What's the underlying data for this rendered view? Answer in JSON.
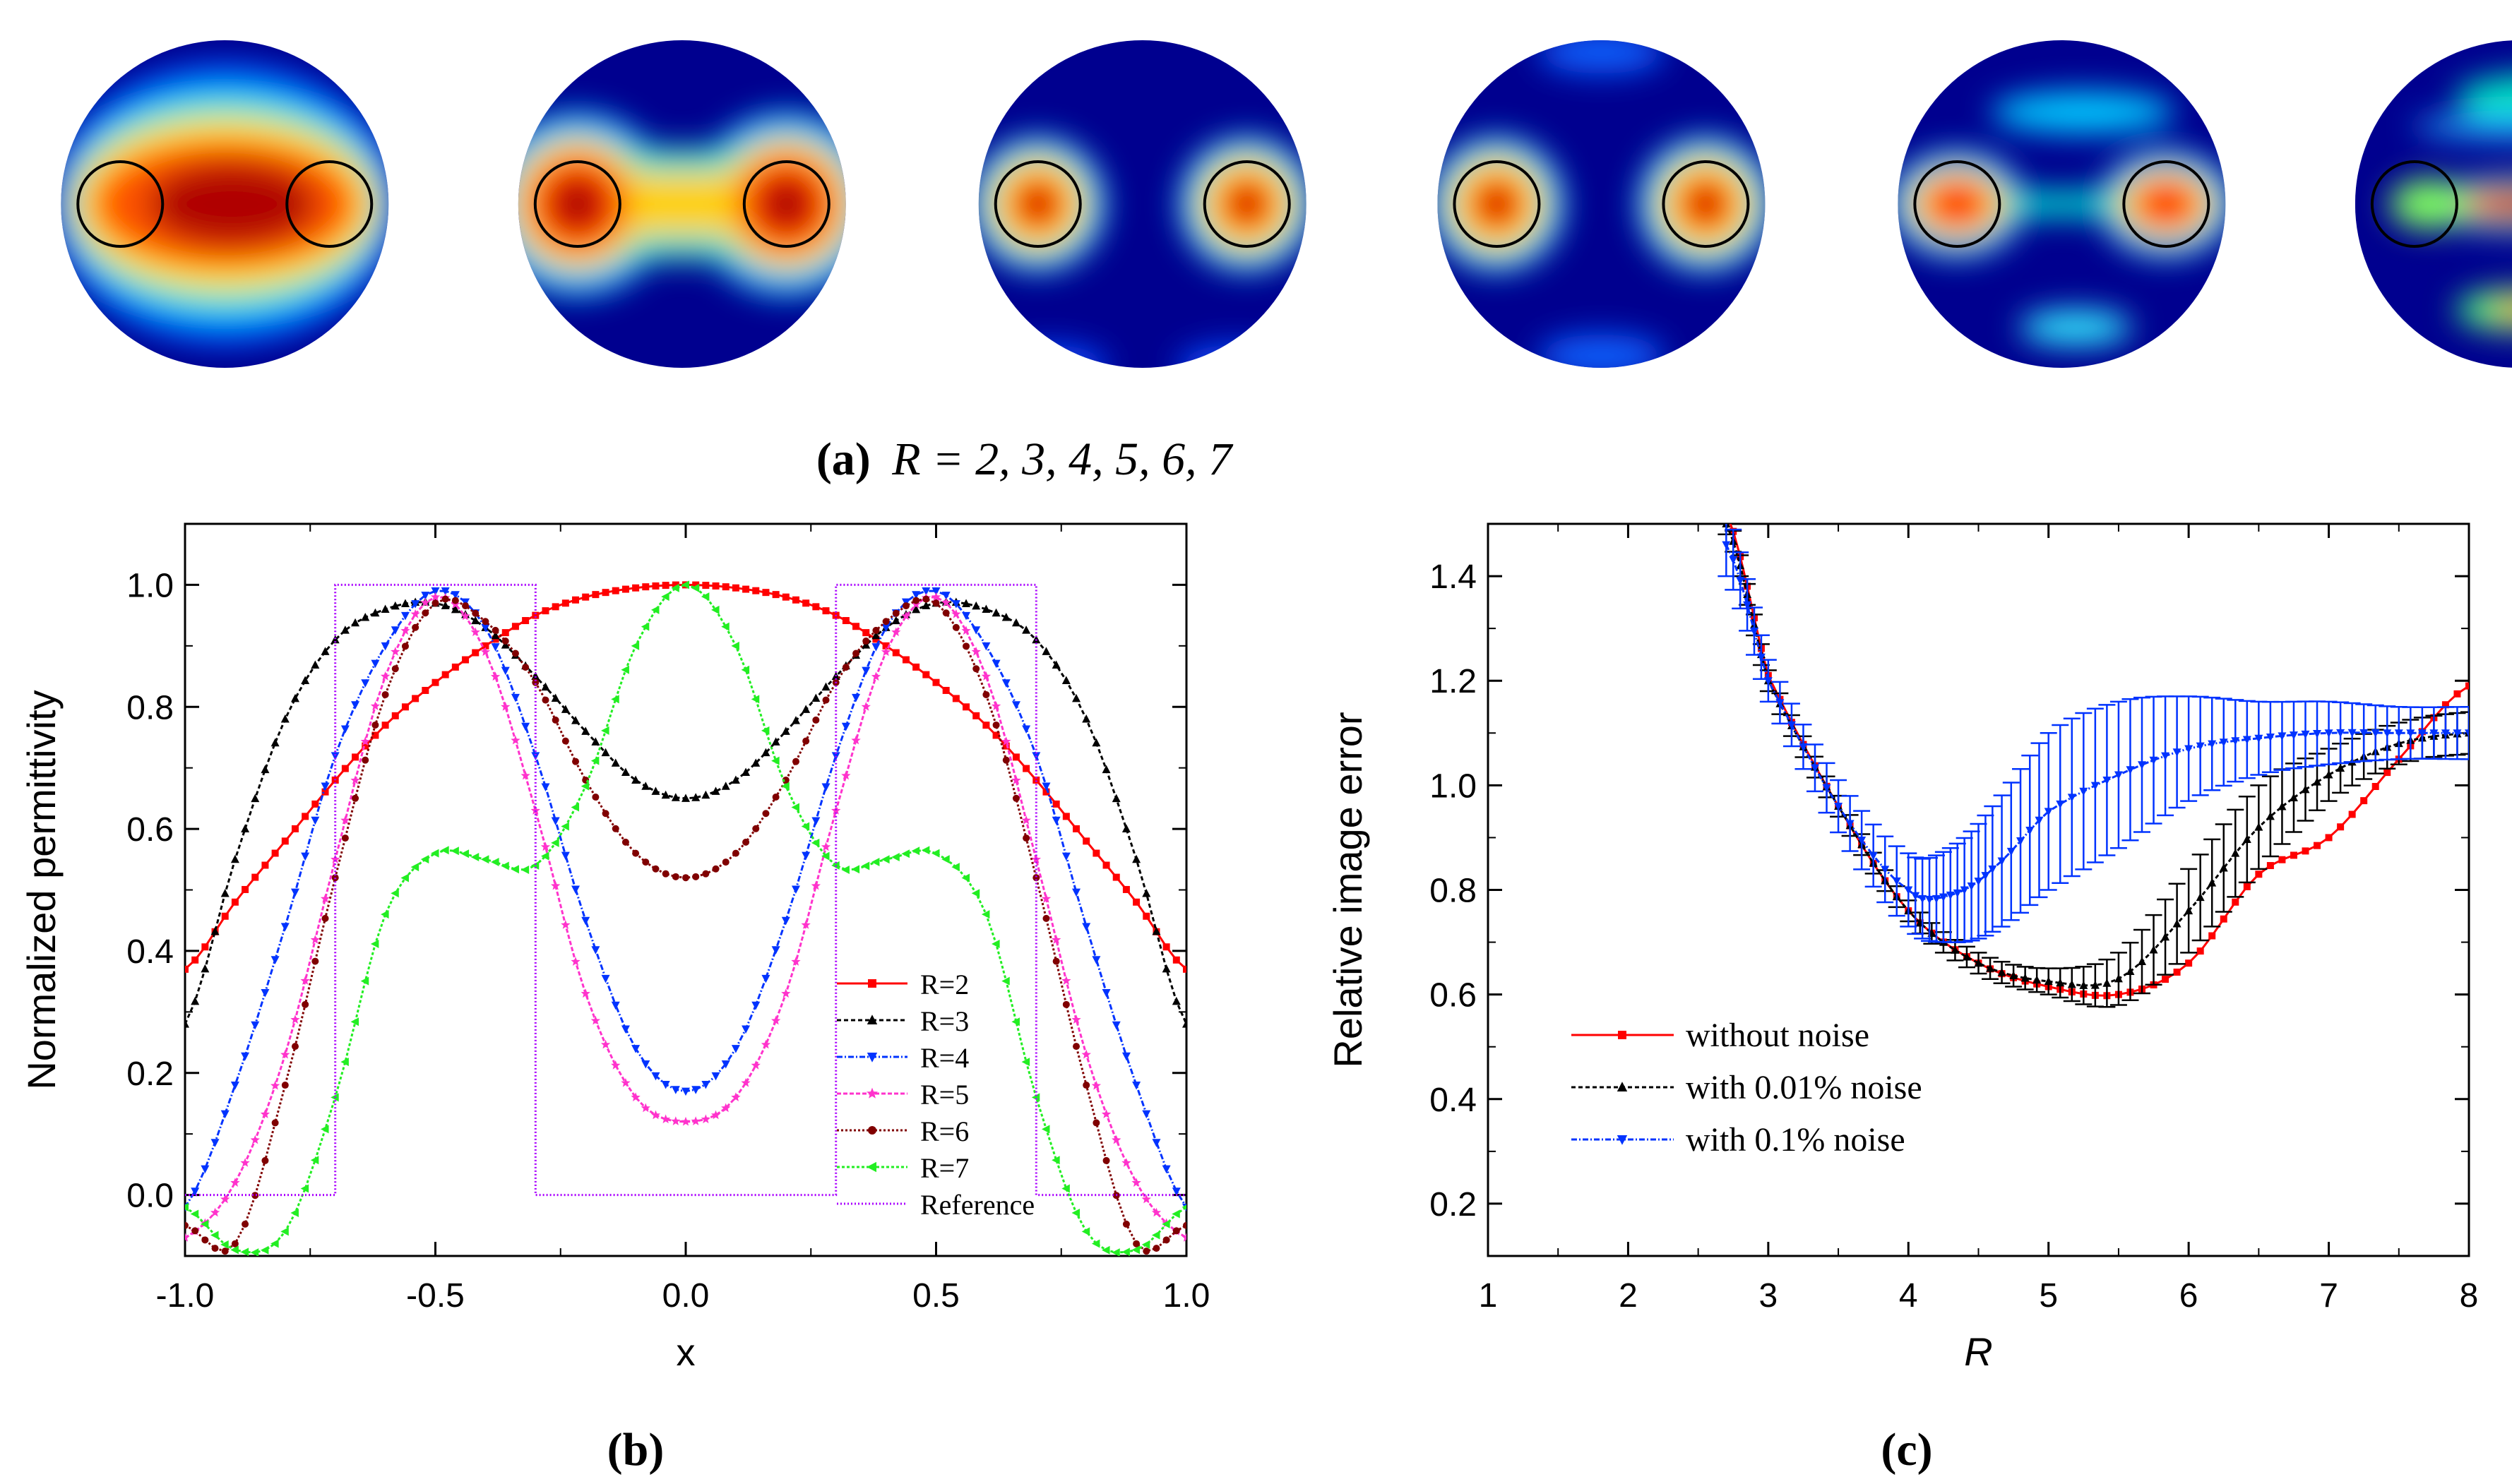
{
  "panel_a": {
    "caption_label": "(a)",
    "caption_text": "R = 2, 3, 4, 5, 6, 7",
    "images": [
      {
        "R": 2,
        "kind": "blob"
      },
      {
        "R": 3,
        "kind": "dumbbell"
      },
      {
        "R": 4,
        "kind": "twin"
      },
      {
        "R": 5,
        "kind": "twin"
      },
      {
        "R": 6,
        "kind": "bridge"
      },
      {
        "R": 7,
        "kind": "streak"
      }
    ]
  },
  "panel_b": {
    "caption_label": "(b)",
    "legend_entries": [
      "R=2",
      "R=3",
      "R=4",
      "R=5",
      "R=6",
      "R=7",
      "Reference"
    ]
  },
  "panel_c": {
    "caption_label": "(c)",
    "legend_entries": [
      "without noise",
      "with 0.01% noise",
      "with 0.1% noise"
    ]
  },
  "chart_data": [
    {
      "id": "b",
      "type": "line",
      "xlabel": "x",
      "ylabel": "Normalized permittivity",
      "xlim": [
        -1.0,
        1.0
      ],
      "ylim": [
        -0.1,
        1.1
      ],
      "xticks": [
        "-1.0",
        "-0.5",
        "0.0",
        "0.5",
        "1.0"
      ],
      "yticks": [
        "0.0",
        "0.2",
        "0.4",
        "0.6",
        "0.8",
        "1.0"
      ],
      "legend_position": "bottom-right",
      "series": [
        {
          "name": "R=2",
          "color": "#ff0000",
          "dash": "none",
          "marker": "square",
          "x": [
            -1.0,
            -0.9,
            -0.8,
            -0.7,
            -0.6,
            -0.5,
            -0.4,
            -0.3,
            -0.2,
            -0.1,
            0.0,
            0.1,
            0.2,
            0.3,
            0.4,
            0.5,
            0.6,
            0.7,
            0.8,
            0.9,
            1.0
          ],
          "y": [
            0.37,
            0.48,
            0.58,
            0.68,
            0.77,
            0.84,
            0.9,
            0.95,
            0.98,
            0.995,
            1.0,
            0.995,
            0.98,
            0.95,
            0.9,
            0.84,
            0.77,
            0.68,
            0.58,
            0.48,
            0.37
          ]
        },
        {
          "name": "R=3",
          "color": "#000000",
          "dash": "6 4",
          "marker": "triangle-up",
          "x": [
            -1.0,
            -0.9,
            -0.8,
            -0.7,
            -0.6,
            -0.5,
            -0.4,
            -0.3,
            -0.2,
            -0.1,
            0.0,
            0.1,
            0.2,
            0.3,
            0.4,
            0.5,
            0.6,
            0.7,
            0.8,
            0.9,
            1.0
          ],
          "y": [
            0.28,
            0.55,
            0.78,
            0.91,
            0.96,
            0.97,
            0.93,
            0.85,
            0.76,
            0.68,
            0.65,
            0.68,
            0.76,
            0.85,
            0.93,
            0.97,
            0.96,
            0.91,
            0.78,
            0.55,
            0.28
          ]
        },
        {
          "name": "R=4",
          "color": "#0033ff",
          "dash": "8 3 2 3",
          "marker": "triangle-down",
          "x": [
            -1.0,
            -0.9,
            -0.8,
            -0.7,
            -0.6,
            -0.5,
            -0.4,
            -0.3,
            -0.2,
            -0.1,
            0.0,
            0.1,
            0.2,
            0.3,
            0.4,
            0.5,
            0.6,
            0.7,
            0.8,
            0.9,
            1.0
          ],
          "y": [
            -0.02,
            0.18,
            0.44,
            0.72,
            0.9,
            0.99,
            0.93,
            0.72,
            0.45,
            0.24,
            0.17,
            0.24,
            0.45,
            0.72,
            0.93,
            0.99,
            0.9,
            0.72,
            0.44,
            0.18,
            -0.02
          ]
        },
        {
          "name": "R=5",
          "color": "#ff33cc",
          "dash": "6 3",
          "marker": "star",
          "x": [
            -1.0,
            -0.9,
            -0.8,
            -0.7,
            -0.6,
            -0.5,
            -0.4,
            -0.3,
            -0.2,
            -0.1,
            0.0,
            0.1,
            0.2,
            0.3,
            0.4,
            0.5,
            0.6,
            0.7,
            0.8,
            0.9,
            1.0
          ],
          "y": [
            -0.07,
            0.02,
            0.23,
            0.55,
            0.85,
            0.98,
            0.89,
            0.63,
            0.33,
            0.16,
            0.12,
            0.16,
            0.33,
            0.63,
            0.89,
            0.98,
            0.85,
            0.55,
            0.23,
            0.02,
            -0.07
          ]
        },
        {
          "name": "R=6",
          "color": "#800000",
          "dash": "3 3",
          "marker": "circle",
          "x": [
            -1.0,
            -0.9,
            -0.8,
            -0.7,
            -0.6,
            -0.5,
            -0.4,
            -0.3,
            -0.2,
            -0.1,
            0.0,
            0.1,
            0.2,
            0.3,
            0.4,
            0.5,
            0.6,
            0.7,
            0.8,
            0.9,
            1.0
          ],
          "y": [
            -0.05,
            -0.08,
            0.18,
            0.52,
            0.82,
            0.97,
            0.94,
            0.84,
            0.68,
            0.56,
            0.52,
            0.56,
            0.68,
            0.84,
            0.94,
            0.97,
            0.82,
            0.52,
            0.18,
            -0.08,
            -0.05
          ]
        },
        {
          "name": "R=7",
          "color": "#22ee22",
          "dash": "4 3",
          "marker": "triangle-left",
          "x": [
            -1.0,
            -0.9,
            -0.8,
            -0.7,
            -0.6,
            -0.5,
            -0.4,
            -0.3,
            -0.2,
            -0.1,
            0.0,
            0.1,
            0.2,
            0.3,
            0.4,
            0.5,
            0.6,
            0.7,
            0.8,
            0.9,
            1.0
          ],
          "y": [
            -0.02,
            -0.09,
            -0.06,
            0.16,
            0.46,
            0.56,
            0.55,
            0.54,
            0.67,
            0.9,
            1.0,
            0.9,
            0.67,
            0.54,
            0.55,
            0.56,
            0.46,
            0.16,
            -0.06,
            -0.09,
            -0.02
          ]
        },
        {
          "name": "Reference",
          "color": "#aa00ff",
          "dash": "2 3",
          "marker": "none",
          "x": [
            -1.0,
            -0.7,
            -0.7,
            -0.3,
            -0.3,
            0.3,
            0.3,
            0.7,
            0.7,
            1.0
          ],
          "y": [
            0.0,
            0.0,
            1.0,
            1.0,
            0.0,
            0.0,
            1.0,
            1.0,
            0.0,
            0.0
          ]
        }
      ]
    },
    {
      "id": "c",
      "type": "line",
      "xlabel": "R",
      "ylabel": "Relative image error",
      "xlim": [
        1,
        8
      ],
      "ylim": [
        0.1,
        1.5
      ],
      "xticks": [
        "1",
        "2",
        "3",
        "4",
        "5",
        "6",
        "7",
        "8"
      ],
      "yticks": [
        "0.2",
        "0.4",
        "0.6",
        "0.8",
        "1.0",
        "1.2",
        "1.4"
      ],
      "legend_position": "bottom-left",
      "series": [
        {
          "name": "without noise",
          "color": "#ff0000",
          "dash": "none",
          "marker": "square",
          "x": [
            2.7,
            3.0,
            3.5,
            4.0,
            4.5,
            5.0,
            5.5,
            6.0,
            6.5,
            7.0,
            7.5,
            8.0
          ],
          "y": [
            1.52,
            1.21,
            0.96,
            0.76,
            0.66,
            0.615,
            0.6,
            0.66,
            0.83,
            0.9,
            1.05,
            1.19
          ]
        },
        {
          "name": "with 0.01% noise",
          "color": "#000000",
          "dash": "6 4",
          "marker": "triangle-up",
          "x": [
            2.7,
            3.0,
            3.5,
            4.0,
            4.5,
            5.0,
            5.5,
            6.0,
            6.5,
            7.0,
            7.5,
            8.0
          ],
          "y": [
            1.5,
            1.2,
            0.96,
            0.76,
            0.66,
            0.625,
            0.63,
            0.76,
            0.92,
            1.02,
            1.08,
            1.1
          ],
          "err": [
            0.02,
            0.02,
            0.02,
            0.02,
            0.02,
            0.025,
            0.05,
            0.08,
            0.08,
            0.05,
            0.04,
            0.04
          ]
        },
        {
          "name": "with 0.1% noise",
          "color": "#0033ff",
          "dash": "8 3 2 3",
          "marker": "triangle-down",
          "x": [
            2.7,
            3.0,
            3.5,
            4.0,
            4.3,
            4.6,
            5.0,
            5.5,
            6.0,
            6.5,
            7.0,
            7.5,
            8.0
          ],
          "y": [
            1.46,
            1.2,
            0.96,
            0.8,
            0.79,
            0.84,
            0.95,
            1.02,
            1.07,
            1.09,
            1.1,
            1.1,
            1.1
          ],
          "err": [
            0.06,
            0.04,
            0.05,
            0.07,
            0.09,
            0.12,
            0.15,
            0.14,
            0.1,
            0.07,
            0.06,
            0.05,
            0.05
          ]
        }
      ]
    }
  ]
}
